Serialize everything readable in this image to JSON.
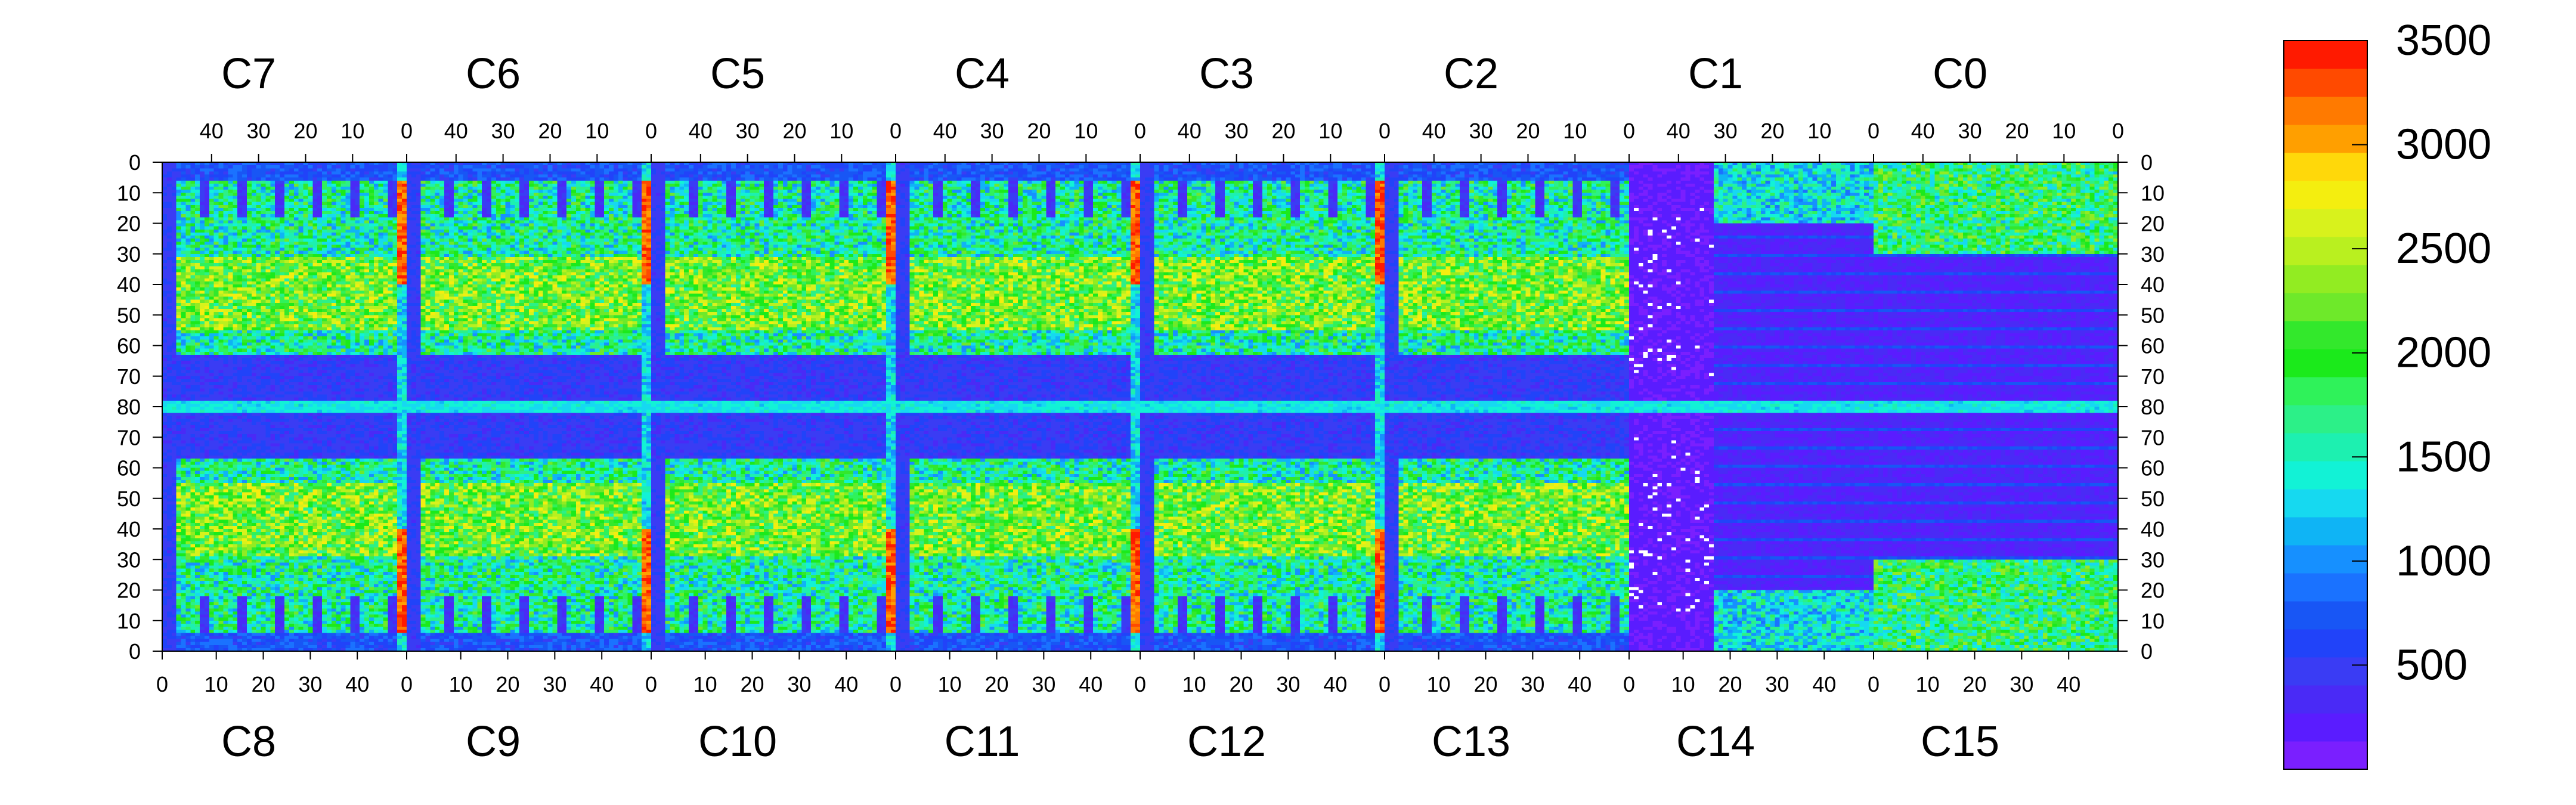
{
  "chart_data": {
    "type": "heatmap",
    "title": "",
    "xlabel": "",
    "ylabel": "",
    "top_chip_labels": [
      "C7",
      "C6",
      "C5",
      "C4",
      "C3",
      "C2",
      "C1",
      "C0"
    ],
    "bottom_chip_labels": [
      "C8",
      "C9",
      "C10",
      "C11",
      "C12",
      "C13",
      "C14",
      "C15"
    ],
    "top_column_ticks": [
      "40",
      "30",
      "20",
      "10",
      "0"
    ],
    "bottom_column_ticks": [
      "0",
      "10",
      "20",
      "30",
      "40"
    ],
    "y_ticks": [
      "0",
      "10",
      "20",
      "30",
      "40",
      "50",
      "60",
      "70",
      "80",
      "70",
      "60",
      "50",
      "40",
      "30",
      "20",
      "10",
      "0"
    ],
    "zlim": [
      0,
      3500
    ],
    "colorbar_ticks": [
      "3500",
      "3000",
      "2500",
      "2000",
      "1500",
      "1000",
      "500"
    ],
    "grid": false,
    "palette": [
      "#7a1fff",
      "#5a1cff",
      "#4a2af6",
      "#3a3cf4",
      "#2143f9",
      "#1856f5",
      "#1a72ff",
      "#1690ff",
      "#0fb4f5",
      "#16d9f0",
      "#12f2d6",
      "#1df0b0",
      "#2cf088",
      "#2ff25a",
      "#1bea1b",
      "#33e82c",
      "#6ee92a",
      "#92ec22",
      "#b9f01f",
      "#d8f21c",
      "#f4ee0f",
      "#ffd80a",
      "#ff9f00",
      "#ff7a00",
      "#ff4a00",
      "#ff1a00"
    ],
    "chip_layout": {
      "rows_per_half": 80,
      "columns_per_chip": 52,
      "hot_column_value": 3300,
      "background_value": 150
    }
  }
}
